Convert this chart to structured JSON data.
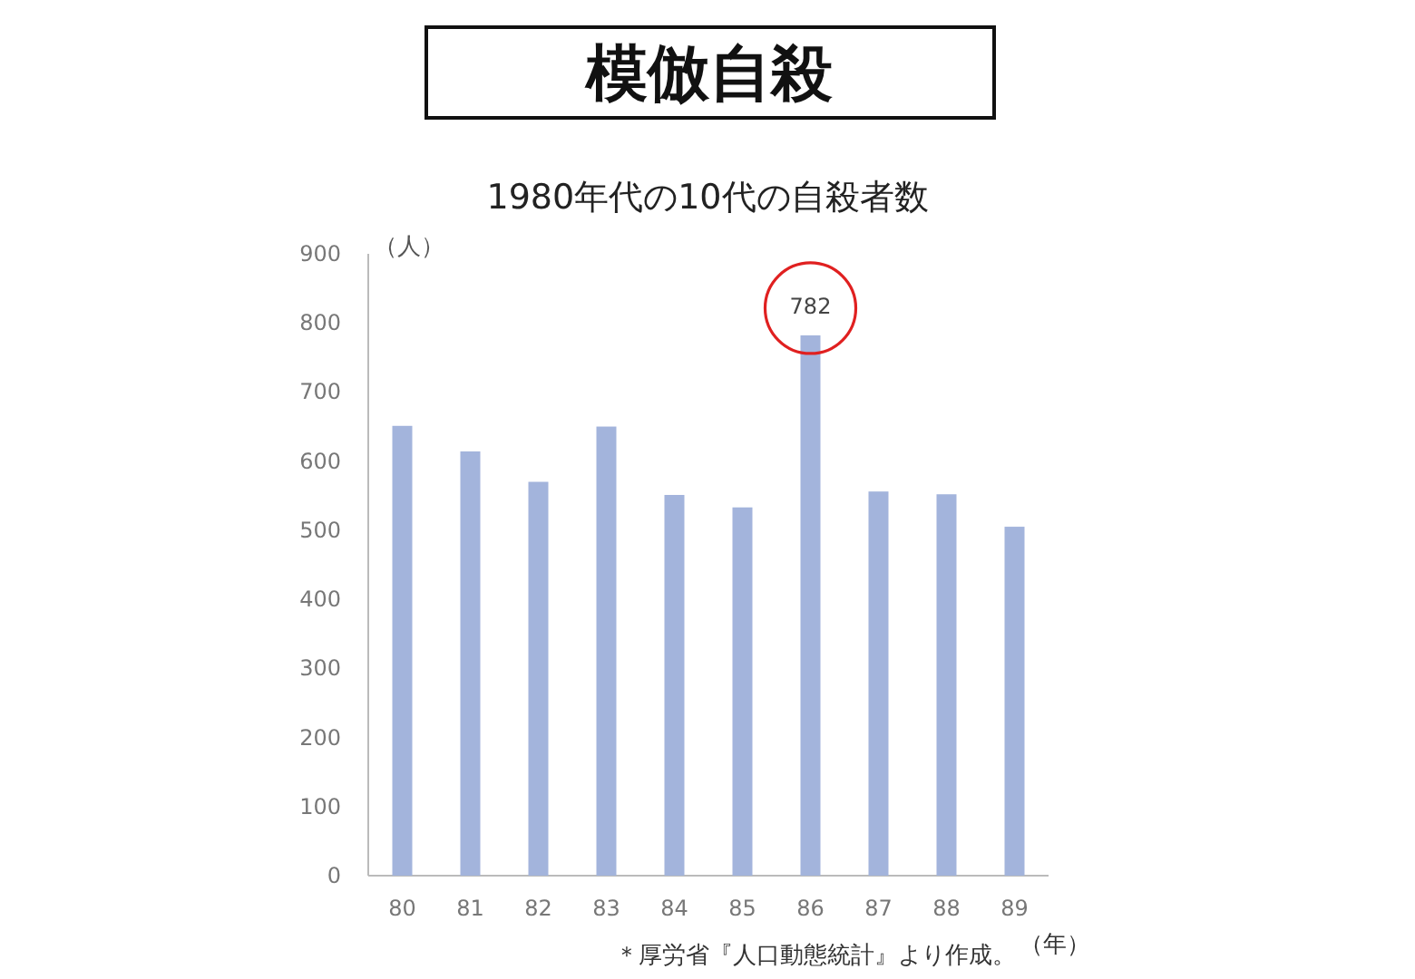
{
  "chart_data": {
    "type": "bar",
    "title": "模倣自殺",
    "subtitle": "1980年代の10代の自殺者数",
    "ylabel": "（人）",
    "xlabel": "（年）",
    "categories": [
      "80",
      "81",
      "82",
      "83",
      "84",
      "85",
      "86",
      "87",
      "88",
      "89"
    ],
    "values": [
      651,
      614,
      570,
      650,
      551,
      533,
      782,
      556,
      552,
      505
    ],
    "value_labels": [
      null,
      null,
      null,
      null,
      null,
      null,
      "782",
      null,
      null,
      null
    ],
    "color": "#a3b4dc",
    "ylim": [
      0,
      900
    ],
    "yticks": [
      0,
      100,
      200,
      300,
      400,
      500,
      600,
      700,
      800,
      900
    ],
    "grid": false,
    "annotations": [
      "＊厚労省『人口動態統計』より作成。"
    ]
  }
}
